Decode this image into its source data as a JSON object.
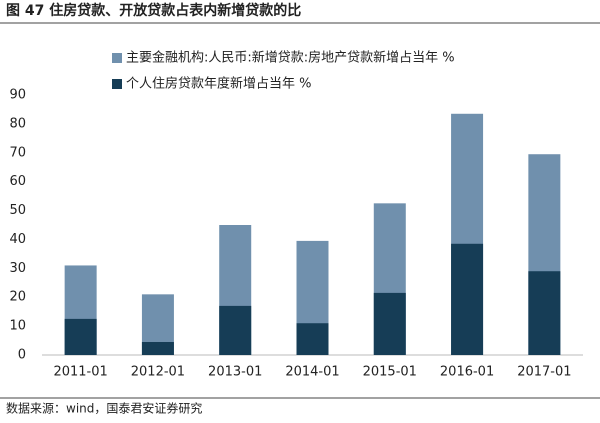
{
  "chart_data": {
    "type": "overlap-bar",
    "title": "图 47 住房贷款、开放贷款占表内新增贷款的比",
    "source": "数据来源：wind，国泰君安证券研究",
    "categories": [
      "2011-01",
      "2012-01",
      "2013-01",
      "2014-01",
      "2015-01",
      "2016-01",
      "2017-01"
    ],
    "series": [
      {
        "name": "主要金融机构:人民币:新增贷款:房地产贷款新增占当年 %",
        "color": "#7090ad",
        "values": [
          31,
          21,
          45,
          39.5,
          52.5,
          83.5,
          69.5
        ]
      },
      {
        "name": "个人住房贷款年度新增占当年 %",
        "color": "#163d56",
        "values": [
          12.5,
          4.5,
          17,
          11,
          21.5,
          38.5,
          29
        ]
      }
    ],
    "ylim": [
      0,
      90
    ],
    "yticks": [
      0,
      10,
      20,
      30,
      40,
      50,
      60,
      70,
      80,
      90
    ],
    "grid": false
  }
}
